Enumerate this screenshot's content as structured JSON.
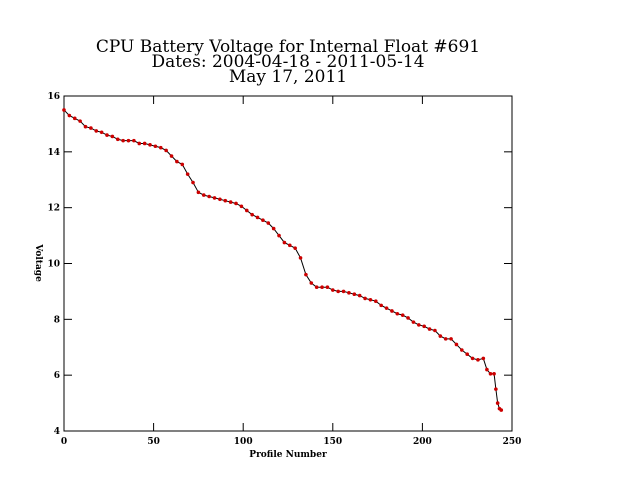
{
  "chart_data": {
    "type": "line",
    "title": "CPU Battery Voltage for Internal Float #691",
    "subtitle": "Dates:  2004-04-18 -  2011-05-14",
    "date": "May 17, 2011",
    "xlabel": "Profile Number",
    "ylabel": "Voltage",
    "xlim": [
      0,
      250
    ],
    "xticks": [
      0,
      50,
      100,
      150,
      200,
      250
    ],
    "ylim": [
      4,
      16
    ],
    "yticks": [
      4,
      6,
      8,
      10,
      12,
      14,
      16
    ],
    "line_color": "#000000",
    "marker_color": "#cc0000",
    "x": [
      0,
      3,
      6,
      9,
      12,
      15,
      18,
      21,
      24,
      27,
      30,
      33,
      36,
      39,
      42,
      45,
      48,
      51,
      54,
      57,
      60,
      63,
      66,
      69,
      72,
      75,
      78,
      81,
      84,
      87,
      90,
      93,
      96,
      99,
      102,
      105,
      108,
      111,
      114,
      117,
      120,
      123,
      126,
      129,
      132,
      135,
      138,
      141,
      144,
      147,
      150,
      153,
      156,
      159,
      162,
      165,
      168,
      171,
      174,
      177,
      180,
      183,
      186,
      189,
      192,
      195,
      198,
      201,
      204,
      207,
      210,
      213,
      216,
      219,
      222,
      225,
      228,
      231,
      234,
      236,
      238,
      240,
      241,
      242,
      243,
      244
    ],
    "values": [
      15.5,
      15.3,
      15.2,
      15.1,
      14.9,
      14.85,
      14.75,
      14.7,
      14.6,
      14.55,
      14.45,
      14.4,
      14.4,
      14.4,
      14.3,
      14.3,
      14.25,
      14.2,
      14.15,
      14.05,
      13.85,
      13.65,
      13.55,
      13.2,
      12.9,
      12.55,
      12.45,
      12.4,
      12.35,
      12.3,
      12.25,
      12.2,
      12.15,
      12.05,
      11.9,
      11.75,
      11.65,
      11.55,
      11.45,
      11.25,
      11.0,
      10.75,
      10.65,
      10.55,
      10.2,
      9.6,
      9.3,
      9.15,
      9.15,
      9.15,
      9.05,
      9.0,
      9.0,
      8.95,
      8.9,
      8.85,
      8.75,
      8.7,
      8.65,
      8.5,
      8.4,
      8.3,
      8.2,
      8.15,
      8.05,
      7.9,
      7.8,
      7.75,
      7.65,
      7.6,
      7.4,
      7.3,
      7.3,
      7.1,
      6.9,
      6.75,
      6.6,
      6.55,
      6.6,
      6.2,
      6.05,
      6.05,
      5.5,
      5.0,
      4.8,
      4.75
    ]
  }
}
